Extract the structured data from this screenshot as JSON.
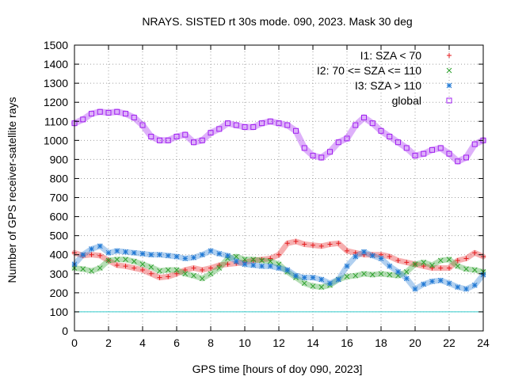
{
  "chart_data": {
    "type": "scatter",
    "title": "NRAYS. SISTED rt 30s mode. 090, 2023. Mask 30 deg",
    "xlabel": "GPS time [hours of doy 090, 2023]",
    "ylabel": "Number of GPS receiver-satellite rays",
    "xlim": [
      0,
      24
    ],
    "ylim": [
      0,
      1500
    ],
    "xticks": [
      0,
      2,
      4,
      6,
      8,
      10,
      12,
      14,
      16,
      18,
      20,
      22,
      24
    ],
    "yticks": [
      0,
      100,
      200,
      300,
      400,
      500,
      600,
      700,
      800,
      900,
      1000,
      1100,
      1200,
      1300,
      1400,
      1500
    ],
    "grid": true,
    "legend_position": "top-right",
    "reference_line": {
      "y": 100,
      "color": "#33cccc"
    },
    "series": [
      {
        "name": "I1: SZA < 70",
        "marker": "plus",
        "color": "#e41a1c",
        "x": [
          0,
          0.5,
          1,
          1.5,
          2,
          2.5,
          3,
          3.5,
          4,
          4.5,
          5,
          5.5,
          6,
          6.5,
          7,
          7.5,
          8,
          8.5,
          9,
          9.5,
          10,
          10.5,
          11,
          11.5,
          12,
          12.5,
          13,
          13.5,
          14,
          14.5,
          15,
          15.5,
          16,
          16.5,
          17,
          17.5,
          18,
          18.5,
          19,
          19.5,
          20,
          20.5,
          21,
          21.5,
          22,
          22.5,
          23,
          23.5,
          24
        ],
        "y": [
          410,
          395,
          400,
          395,
          370,
          345,
          340,
          330,
          320,
          300,
          280,
          285,
          300,
          320,
          330,
          320,
          330,
          345,
          350,
          355,
          360,
          370,
          375,
          380,
          400,
          460,
          470,
          455,
          450,
          445,
          455,
          460,
          420,
          410,
          400,
          400,
          400,
          390,
          370,
          360,
          350,
          340,
          330,
          330,
          330,
          370,
          380,
          410,
          390
        ]
      },
      {
        "name": "I2: 70 <= SZA <= 110",
        "marker": "cross",
        "color": "#2ca02c",
        "x": [
          0,
          0.5,
          1,
          1.5,
          2,
          2.5,
          3,
          3.5,
          4,
          4.5,
          5,
          5.5,
          6,
          6.5,
          7,
          7.5,
          8,
          8.5,
          9,
          9.5,
          10,
          10.5,
          11,
          11.5,
          12,
          12.5,
          13,
          13.5,
          14,
          14.5,
          15,
          15.5,
          16,
          16.5,
          17,
          17.5,
          18,
          18.5,
          19,
          19.5,
          20,
          20.5,
          21,
          21.5,
          22,
          22.5,
          23,
          23.5,
          24
        ],
        "y": [
          330,
          325,
          315,
          330,
          370,
          375,
          375,
          365,
          350,
          335,
          315,
          320,
          320,
          300,
          290,
          275,
          300,
          330,
          380,
          390,
          375,
          375,
          370,
          365,
          350,
          310,
          280,
          250,
          235,
          230,
          240,
          270,
          285,
          290,
          300,
          295,
          300,
          295,
          290,
          310,
          350,
          360,
          345,
          370,
          375,
          340,
          325,
          320,
          310
        ]
      },
      {
        "name": "I3: SZA > 110",
        "marker": "star",
        "color": "#1f78d4",
        "x": [
          0,
          0.5,
          1,
          1.5,
          2,
          2.5,
          3,
          3.5,
          4,
          4.5,
          5,
          5.5,
          6,
          6.5,
          7,
          7.5,
          8,
          8.5,
          9,
          9.5,
          10,
          10.5,
          11,
          11.5,
          12,
          12.5,
          13,
          13.5,
          14,
          14.5,
          15,
          15.5,
          16,
          16.5,
          17,
          17.5,
          18,
          18.5,
          19,
          19.5,
          20,
          20.5,
          21,
          21.5,
          22,
          22.5,
          23,
          23.5,
          24
        ],
        "y": [
          350,
          400,
          430,
          445,
          410,
          420,
          415,
          410,
          405,
          400,
          400,
          395,
          390,
          380,
          385,
          400,
          420,
          405,
          395,
          365,
          350,
          345,
          340,
          340,
          330,
          320,
          290,
          280,
          280,
          270,
          250,
          270,
          340,
          390,
          415,
          395,
          380,
          340,
          310,
          275,
          220,
          245,
          260,
          265,
          250,
          230,
          220,
          240,
          295
        ]
      },
      {
        "name": "global",
        "marker": "square",
        "color": "#a020f0",
        "x": [
          0,
          0.5,
          1,
          1.5,
          2,
          2.5,
          3,
          3.5,
          4,
          4.5,
          5,
          5.5,
          6,
          6.5,
          7,
          7.5,
          8,
          8.5,
          9,
          9.5,
          10,
          10.5,
          11,
          11.5,
          12,
          12.5,
          13,
          13.5,
          14,
          14.5,
          15,
          15.5,
          16,
          16.5,
          17,
          17.5,
          18,
          18.5,
          19,
          19.5,
          20,
          20.5,
          21,
          21.5,
          22,
          22.5,
          23,
          23.5,
          24
        ],
        "y": [
          1090,
          1110,
          1140,
          1150,
          1145,
          1150,
          1140,
          1120,
          1080,
          1020,
          1000,
          1000,
          1020,
          1030,
          990,
          1000,
          1040,
          1060,
          1090,
          1080,
          1070,
          1070,
          1090,
          1100,
          1090,
          1080,
          1050,
          960,
          920,
          910,
          940,
          990,
          1010,
          1080,
          1120,
          1090,
          1050,
          1020,
          990,
          960,
          920,
          930,
          950,
          960,
          930,
          890,
          910,
          980,
          1000
        ]
      }
    ]
  }
}
